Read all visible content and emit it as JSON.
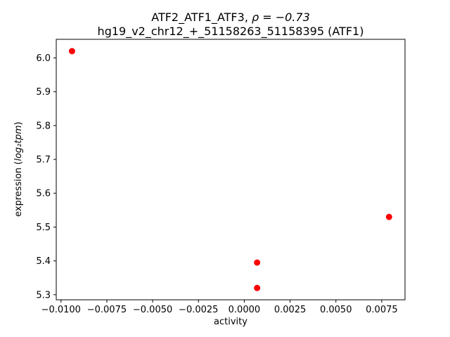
{
  "figure": {
    "background": "#ffffff",
    "frame_color": "#000000"
  },
  "chart_data": {
    "type": "scatter",
    "title_prefix": "ATF2_ATF1_ATF3, ",
    "title_math": "ρ = −0.73",
    "subtitle": "hg19_v2_chr12_+_51158263_51158395 (ATF1)",
    "xlabel": "activity",
    "ylabel_prefix": "expression (",
    "ylabel_math": "log₂tpm",
    "ylabel_suffix": ")",
    "marker_color": "#ff0000",
    "points": [
      {
        "x": -0.0094,
        "y": 6.02
      },
      {
        "x": 0.0007,
        "y": 5.395
      },
      {
        "x": 0.0007,
        "y": 5.32
      },
      {
        "x": 0.0079,
        "y": 5.53
      }
    ],
    "xlim": [
      -0.01026,
      0.00877
    ],
    "ylim": [
      5.285,
      6.055
    ],
    "xticks": [
      -0.01,
      -0.0075,
      -0.005,
      -0.0025,
      0.0,
      0.0025,
      0.005,
      0.0075
    ],
    "yticks": [
      5.3,
      5.4,
      5.5,
      5.6,
      5.7,
      5.8,
      5.9,
      6.0
    ],
    "x_tick_decimals": 4,
    "y_tick_decimals": 1,
    "legend": "none",
    "grid": false
  }
}
